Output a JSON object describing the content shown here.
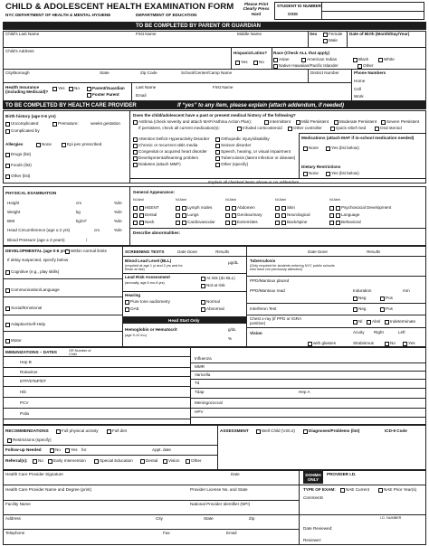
{
  "header": [
    "CHILD & ADOLESCENT HEALTH EXAMINATION FORM",
    "NYC DEPARTMENT OF HEALTH & MENTAL HYGIENE",
    "DEPARTMENT OF EDUCATION",
    "Please Print Clearly Press Hard",
    "STUDENT ID NUMBER",
    "OSIS"
  ],
  "parent": [
    "TO BE COMPLETED BY PARENT OR GUARDIAN",
    "Child's Last Name",
    "First Name",
    "Middle Name",
    "Sex",
    "Female",
    "Male",
    "Date of Birth (Month/Day/Year)",
    "Child's Address",
    "Hispanic/Latino?",
    "Yes",
    "No",
    "Race (Check ALL that apply)",
    "Asian",
    "American Indian",
    "Black",
    "White",
    "Native Hawaiian/Pacific Islander",
    "Other",
    "City/Borough",
    "State",
    "Zip Code",
    "School/Center/Camp Name",
    "District Number",
    "Phone Numbers",
    "Home",
    "Cell",
    "Work",
    "Health Insurance (including Medicaid)?",
    "Yes",
    "No",
    "Parent/Guardian",
    "Foster Parent",
    "Last Name",
    "First Name",
    "Email"
  ],
  "provider": [
    "TO BE COMPLETED BY HEALTH CARE PROVIDER",
    "If “yes” to any item, please explain (attach addendum, if needed)",
    "Birth history (age 0-6 yrs)",
    "Uncomplicated",
    "Premature:",
    "weeks gestation",
    "Complicated by",
    "Allergies",
    "None",
    "Epi pen prescribed",
    "Drugs (list)",
    "Foods (list)",
    "Other (list)",
    "Does the child/adolescent have a past or present medical history of the following?",
    "Asthma (check severity and attach MAF/Asthma Action Plan):",
    "Intermittent",
    "Mild Persistent",
    "Moderate Persistent",
    "Severe Persistent",
    "If persistent, check all current medication(s):",
    "Inhaled corticosteroid",
    "Other controller",
    "Quick relief med",
    "Oral steroid",
    "Attention Deficit Hyperactivity Disorder",
    "Chronic or recurrent otitis media",
    "Congenital or acquired heart disorder",
    "Developmental/learning problem",
    "Diabetes (attach MMF)",
    "Orthopedic injury/disability",
    "Seizure disorder",
    "Speech, hearing, or visual impairment",
    "Tuberculosis (latent infection or disease)",
    "Other (specify)",
    "Medications (attach MAF if in-school medication needed)",
    "None",
    "Yes (list below)",
    "Dietary Restrictions",
    "None",
    "Yes (list below)",
    "Explain all checked items above or on addendum"
  ],
  "exam": [
    "PHYSICAL EXAMINATION",
    "Height",
    "cm",
    "%ile",
    "Weight",
    "kg",
    "%ile",
    "BMI",
    "kg/m²",
    "%ile",
    "Head Circumference (age ≤ 2 yrs)",
    "cm",
    "%ile",
    "Blood Pressure (age ≥ 3 years)",
    "/",
    "General Appearance:",
    "Nl Abnl",
    "Nl Abnl",
    "Nl Abnl",
    "Nl Abnl",
    "Nl Abnl",
    "HEENT",
    "Dental",
    "Neck",
    "Lymph nodes",
    "Lungs",
    "Cardiovascular",
    "Abdomen",
    "Genitourinary",
    "Extremities",
    "Skin",
    "Neurological",
    "Back/spine",
    "Psychosocial Development",
    "Language",
    "Behavioral",
    "Describe abnormalities:"
  ],
  "dev": [
    "DEVELOPMENTAL (age 0-6 yrs)",
    "Within normal limits",
    "If delay suspected, specify below",
    "Cognitive (e.g., play skills)",
    "Communication/Language",
    "Social/Emotional",
    "Adaptive/Self-Help",
    "Motor",
    "SCREENING TESTS",
    "Date Done",
    "Results",
    "Blood Lead Level (BLL)",
    "(required at age 1 yr and 2 yrs and for those at risk)",
    "μg/dL",
    "Lead Risk Assessment",
    "(annually, age 6 mo-6 yrs)",
    "At risk (do BLL)",
    "Not at risk",
    "Hearing",
    "Pure tone audiometry",
    "OAE",
    "Normal",
    "Abnormal",
    "Head Start Only",
    "Hemoglobin or Hematocrit",
    "(age 9-12 mo)",
    "g/dL",
    "%",
    "Tuberculosis",
    "(Only required for students entering NYC public schools who have not previously attended)",
    "Date Done",
    "Results",
    "PPD/Mantoux placed",
    "PPD/Mantoux read",
    "Induration",
    "mm",
    "Neg",
    "Pos",
    "Interferon Test",
    "Neg",
    "Pos",
    "Chest x-ray (if PPD or IGRA positive)",
    "Nl",
    "Abnl",
    "Indeterminate",
    "Vision",
    "Acuity",
    "Right",
    "Left",
    "with glasses",
    "Strabismus",
    "No",
    "Yes"
  ],
  "imm": [
    "IMMUNIZATIONS – DATES",
    "OR Number of Child",
    "Hep B",
    "Rotavirus",
    "DTP/DTaP/DT",
    "Hib",
    "PCV",
    "Polio",
    "Influenza",
    "MMR",
    "Varicella",
    "Td",
    "Tdap",
    "Hep A",
    "Meningococcal",
    "HPV"
  ],
  "rec": [
    "RECOMMENDATIONS",
    "Full physical activity",
    "Full diet",
    "Restrictions (specify)",
    "Follow-up Needed",
    "No",
    "Yes",
    "for",
    "Appt. date",
    "Referral(s):",
    "No",
    "Early Intervention",
    "Special Education",
    "Dental",
    "Vision",
    "Other",
    "ASSESSMENT",
    "Well Child (V20.2)",
    "Diagnoses/Problems (list)",
    "ICD-9 Code"
  ],
  "prov": [
    "Health Care Provider Signature",
    "Date",
    "DOHMH ONLY",
    "PROVIDER I.D.",
    "Health Care Provider Name and Degree (print)",
    "Provider License No. and State",
    "TYPE OF EXAM:",
    "NAE Current",
    "NAE Prior Year(s)",
    "Comments",
    "Facility Name",
    "National Provider Identifier (NPI)",
    "Address",
    "City",
    "State",
    "Zip",
    "I.D. NUMBER",
    "Telephone",
    "Fax",
    "Email",
    "Date Reviewed:",
    "Reviewer:"
  ]
}
